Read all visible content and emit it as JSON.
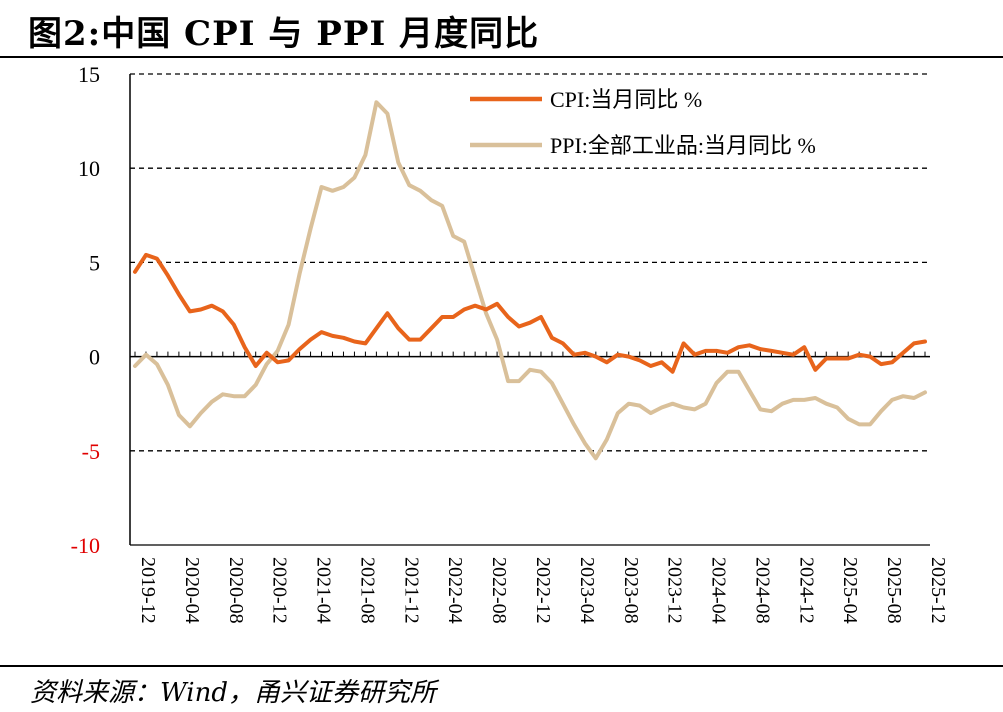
{
  "title": "图2:中国 CPI 与 PPI 月度同比",
  "source": "资料来源：Wind，甬兴证券研究所",
  "colors": {
    "cpi": "#E8641B",
    "ppi": "#D9C09A",
    "negative_tick": "#E00000",
    "axis": "#000000"
  },
  "chart_data": {
    "type": "line",
    "title": "",
    "xlabel": "",
    "ylabel": "",
    "ylim": [
      -10,
      15
    ],
    "yticks": [
      15,
      10,
      5,
      0,
      -5,
      -10
    ],
    "grid": "dashed horizontal",
    "legend_position": "top-right",
    "xtick_labels": [
      "2019-12",
      "2020-04",
      "2020-08",
      "2020-12",
      "2021-04",
      "2021-08",
      "2021-12",
      "2022-04",
      "2022-08",
      "2022-12",
      "2023-04",
      "2023-08",
      "2023-12",
      "2024-04",
      "2024-08",
      "2024-12",
      "2025-04",
      "2025-08",
      "2025-12"
    ],
    "x": [
      "2019-12",
      "2020-01",
      "2020-02",
      "2020-03",
      "2020-04",
      "2020-05",
      "2020-06",
      "2020-07",
      "2020-08",
      "2020-09",
      "2020-10",
      "2020-11",
      "2020-12",
      "2021-01",
      "2021-02",
      "2021-03",
      "2021-04",
      "2021-05",
      "2021-06",
      "2021-07",
      "2021-08",
      "2021-09",
      "2021-10",
      "2021-11",
      "2021-12",
      "2022-01",
      "2022-02",
      "2022-03",
      "2022-04",
      "2022-05",
      "2022-06",
      "2022-07",
      "2022-08",
      "2022-09",
      "2022-10",
      "2022-11",
      "2022-12",
      "2023-01",
      "2023-02",
      "2023-03",
      "2023-04",
      "2023-05",
      "2023-06",
      "2023-07",
      "2023-08",
      "2023-09",
      "2023-10",
      "2023-11",
      "2023-12",
      "2024-01",
      "2024-02",
      "2024-03",
      "2024-04",
      "2024-05",
      "2024-06",
      "2024-07",
      "2024-08",
      "2024-09",
      "2024-10",
      "2024-11",
      "2024-12",
      "2025-01",
      "2025-02",
      "2025-03",
      "2025-04",
      "2025-05",
      "2025-06",
      "2025-07",
      "2025-08",
      "2025-09",
      "2025-10",
      "2025-11",
      "2025-12"
    ],
    "series": [
      {
        "name": "CPI:当月同比 %",
        "values": [
          4.5,
          5.4,
          5.2,
          4.3,
          3.3,
          2.4,
          2.5,
          2.7,
          2.4,
          1.7,
          0.5,
          -0.5,
          0.2,
          -0.3,
          -0.2,
          0.4,
          0.9,
          1.3,
          1.1,
          1.0,
          0.8,
          0.7,
          1.5,
          2.3,
          1.5,
          0.9,
          0.9,
          1.5,
          2.1,
          2.1,
          2.5,
          2.7,
          2.5,
          2.8,
          2.1,
          1.6,
          1.8,
          2.1,
          1.0,
          0.7,
          0.1,
          0.2,
          0.0,
          -0.3,
          0.1,
          0.0,
          -0.2,
          -0.5,
          -0.3,
          -0.8,
          0.7,
          0.1,
          0.3,
          0.3,
          0.2,
          0.5,
          0.6,
          0.4,
          0.3,
          0.2,
          0.1,
          0.5,
          -0.7,
          -0.1,
          -0.1,
          -0.1,
          0.1,
          0.0,
          -0.4,
          -0.3,
          0.2,
          0.7,
          0.8
        ]
      },
      {
        "name": "PPI:全部工业品:当月同比 %",
        "values": [
          -0.5,
          0.1,
          -0.4,
          -1.5,
          -3.1,
          -3.7,
          -3.0,
          -2.4,
          -2.0,
          -2.1,
          -2.1,
          -1.5,
          -0.4,
          0.3,
          1.7,
          4.4,
          6.8,
          9.0,
          8.8,
          9.0,
          9.5,
          10.7,
          13.5,
          12.9,
          10.3,
          9.1,
          8.8,
          8.3,
          8.0,
          6.4,
          6.1,
          4.2,
          2.3,
          0.9,
          -1.3,
          -1.3,
          -0.7,
          -0.8,
          -1.4,
          -2.5,
          -3.6,
          -4.6,
          -5.4,
          -4.4,
          -3.0,
          -2.5,
          -2.6,
          -3.0,
          -2.7,
          -2.5,
          -2.7,
          -2.8,
          -2.5,
          -1.4,
          -0.8,
          -0.8,
          -1.8,
          -2.8,
          -2.9,
          -2.5,
          -2.3,
          -2.3,
          -2.2,
          -2.5,
          -2.7,
          -3.3,
          -3.6,
          -3.6,
          -2.9,
          -2.3,
          -2.1,
          -2.2,
          -1.9
        ]
      }
    ]
  }
}
